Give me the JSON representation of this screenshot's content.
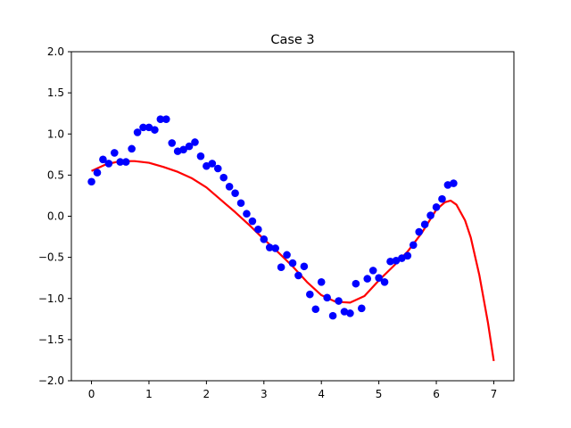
{
  "chart_data": {
    "type": "scatter",
    "title": "Case 3",
    "xlabel": "",
    "ylabel": "",
    "xlim": [
      -0.35,
      7.35
    ],
    "ylim": [
      -2.0,
      2.0
    ],
    "xticks": [
      0,
      1,
      2,
      3,
      4,
      5,
      6,
      7
    ],
    "yticks": [
      -2.0,
      -1.5,
      -1.0,
      -0.5,
      0.0,
      0.5,
      1.0,
      1.5,
      2.0
    ],
    "xtick_labels": [
      "0",
      "1",
      "2",
      "3",
      "4",
      "5",
      "6",
      "7"
    ],
    "ytick_labels": [
      "−2.0",
      "−1.5",
      "−1.0",
      "−0.5",
      "0.0",
      "0.5",
      "1.0",
      "1.5",
      "2.0"
    ],
    "grid": false,
    "series": [
      {
        "kind": "points",
        "color": "#0000ff",
        "x": [
          0.0,
          0.1,
          0.2,
          0.3,
          0.4,
          0.5,
          0.6,
          0.7,
          0.8,
          0.9,
          1.0,
          1.1,
          1.2,
          1.3,
          1.4,
          1.5,
          1.6,
          1.7,
          1.8,
          1.9,
          2.0,
          2.1,
          2.2,
          2.3,
          2.4,
          2.5,
          2.6,
          2.7,
          2.8,
          2.9,
          3.0,
          3.1,
          3.2,
          3.3,
          3.4,
          3.5,
          3.6,
          3.7,
          3.8,
          3.9,
          4.0,
          4.1,
          4.2,
          4.3,
          4.4,
          4.5,
          4.6,
          4.7,
          4.8,
          4.9,
          5.0,
          5.1,
          5.2,
          5.3,
          5.4,
          5.5,
          5.6,
          5.7,
          5.8,
          5.9,
          6.0,
          6.1,
          6.2,
          6.3
        ],
        "y": [
          0.42,
          0.53,
          0.69,
          0.64,
          0.77,
          0.66,
          0.66,
          0.82,
          1.02,
          1.08,
          1.08,
          1.05,
          1.18,
          1.18,
          0.89,
          0.79,
          0.81,
          0.85,
          0.9,
          0.73,
          0.61,
          0.64,
          0.58,
          0.47,
          0.36,
          0.28,
          0.16,
          0.03,
          -0.06,
          -0.16,
          -0.28,
          -0.38,
          -0.39,
          -0.62,
          -0.47,
          -0.57,
          -0.72,
          -0.61,
          -0.95,
          -1.13,
          -0.8,
          -0.99,
          -1.21,
          -1.03,
          -1.16,
          -1.18,
          -0.82,
          -1.12,
          -0.76,
          -0.66,
          -0.75,
          -0.8,
          -0.55,
          -0.54,
          -0.51,
          -0.48,
          -0.35,
          -0.19,
          -0.1,
          0.01,
          0.11,
          0.21,
          0.38,
          0.4
        ]
      },
      {
        "kind": "curve",
        "color": "#ff0000",
        "x": [
          0.0,
          0.25,
          0.5,
          0.75,
          1.0,
          1.25,
          1.5,
          1.75,
          2.0,
          2.25,
          2.5,
          2.75,
          3.0,
          3.25,
          3.5,
          3.75,
          4.0,
          4.25,
          4.5,
          4.75,
          5.0,
          5.25,
          5.5,
          5.75,
          6.0,
          6.15,
          6.25,
          6.35,
          6.5,
          6.6,
          6.75,
          6.9,
          7.0
        ],
        "y": [
          0.55,
          0.63,
          0.67,
          0.67,
          0.65,
          0.6,
          0.54,
          0.46,
          0.35,
          0.2,
          0.05,
          -0.11,
          -0.28,
          -0.44,
          -0.61,
          -0.8,
          -0.96,
          -1.04,
          -1.05,
          -0.97,
          -0.78,
          -0.61,
          -0.43,
          -0.2,
          0.08,
          0.17,
          0.19,
          0.14,
          -0.05,
          -0.26,
          -0.72,
          -1.3,
          -1.76
        ]
      }
    ]
  }
}
